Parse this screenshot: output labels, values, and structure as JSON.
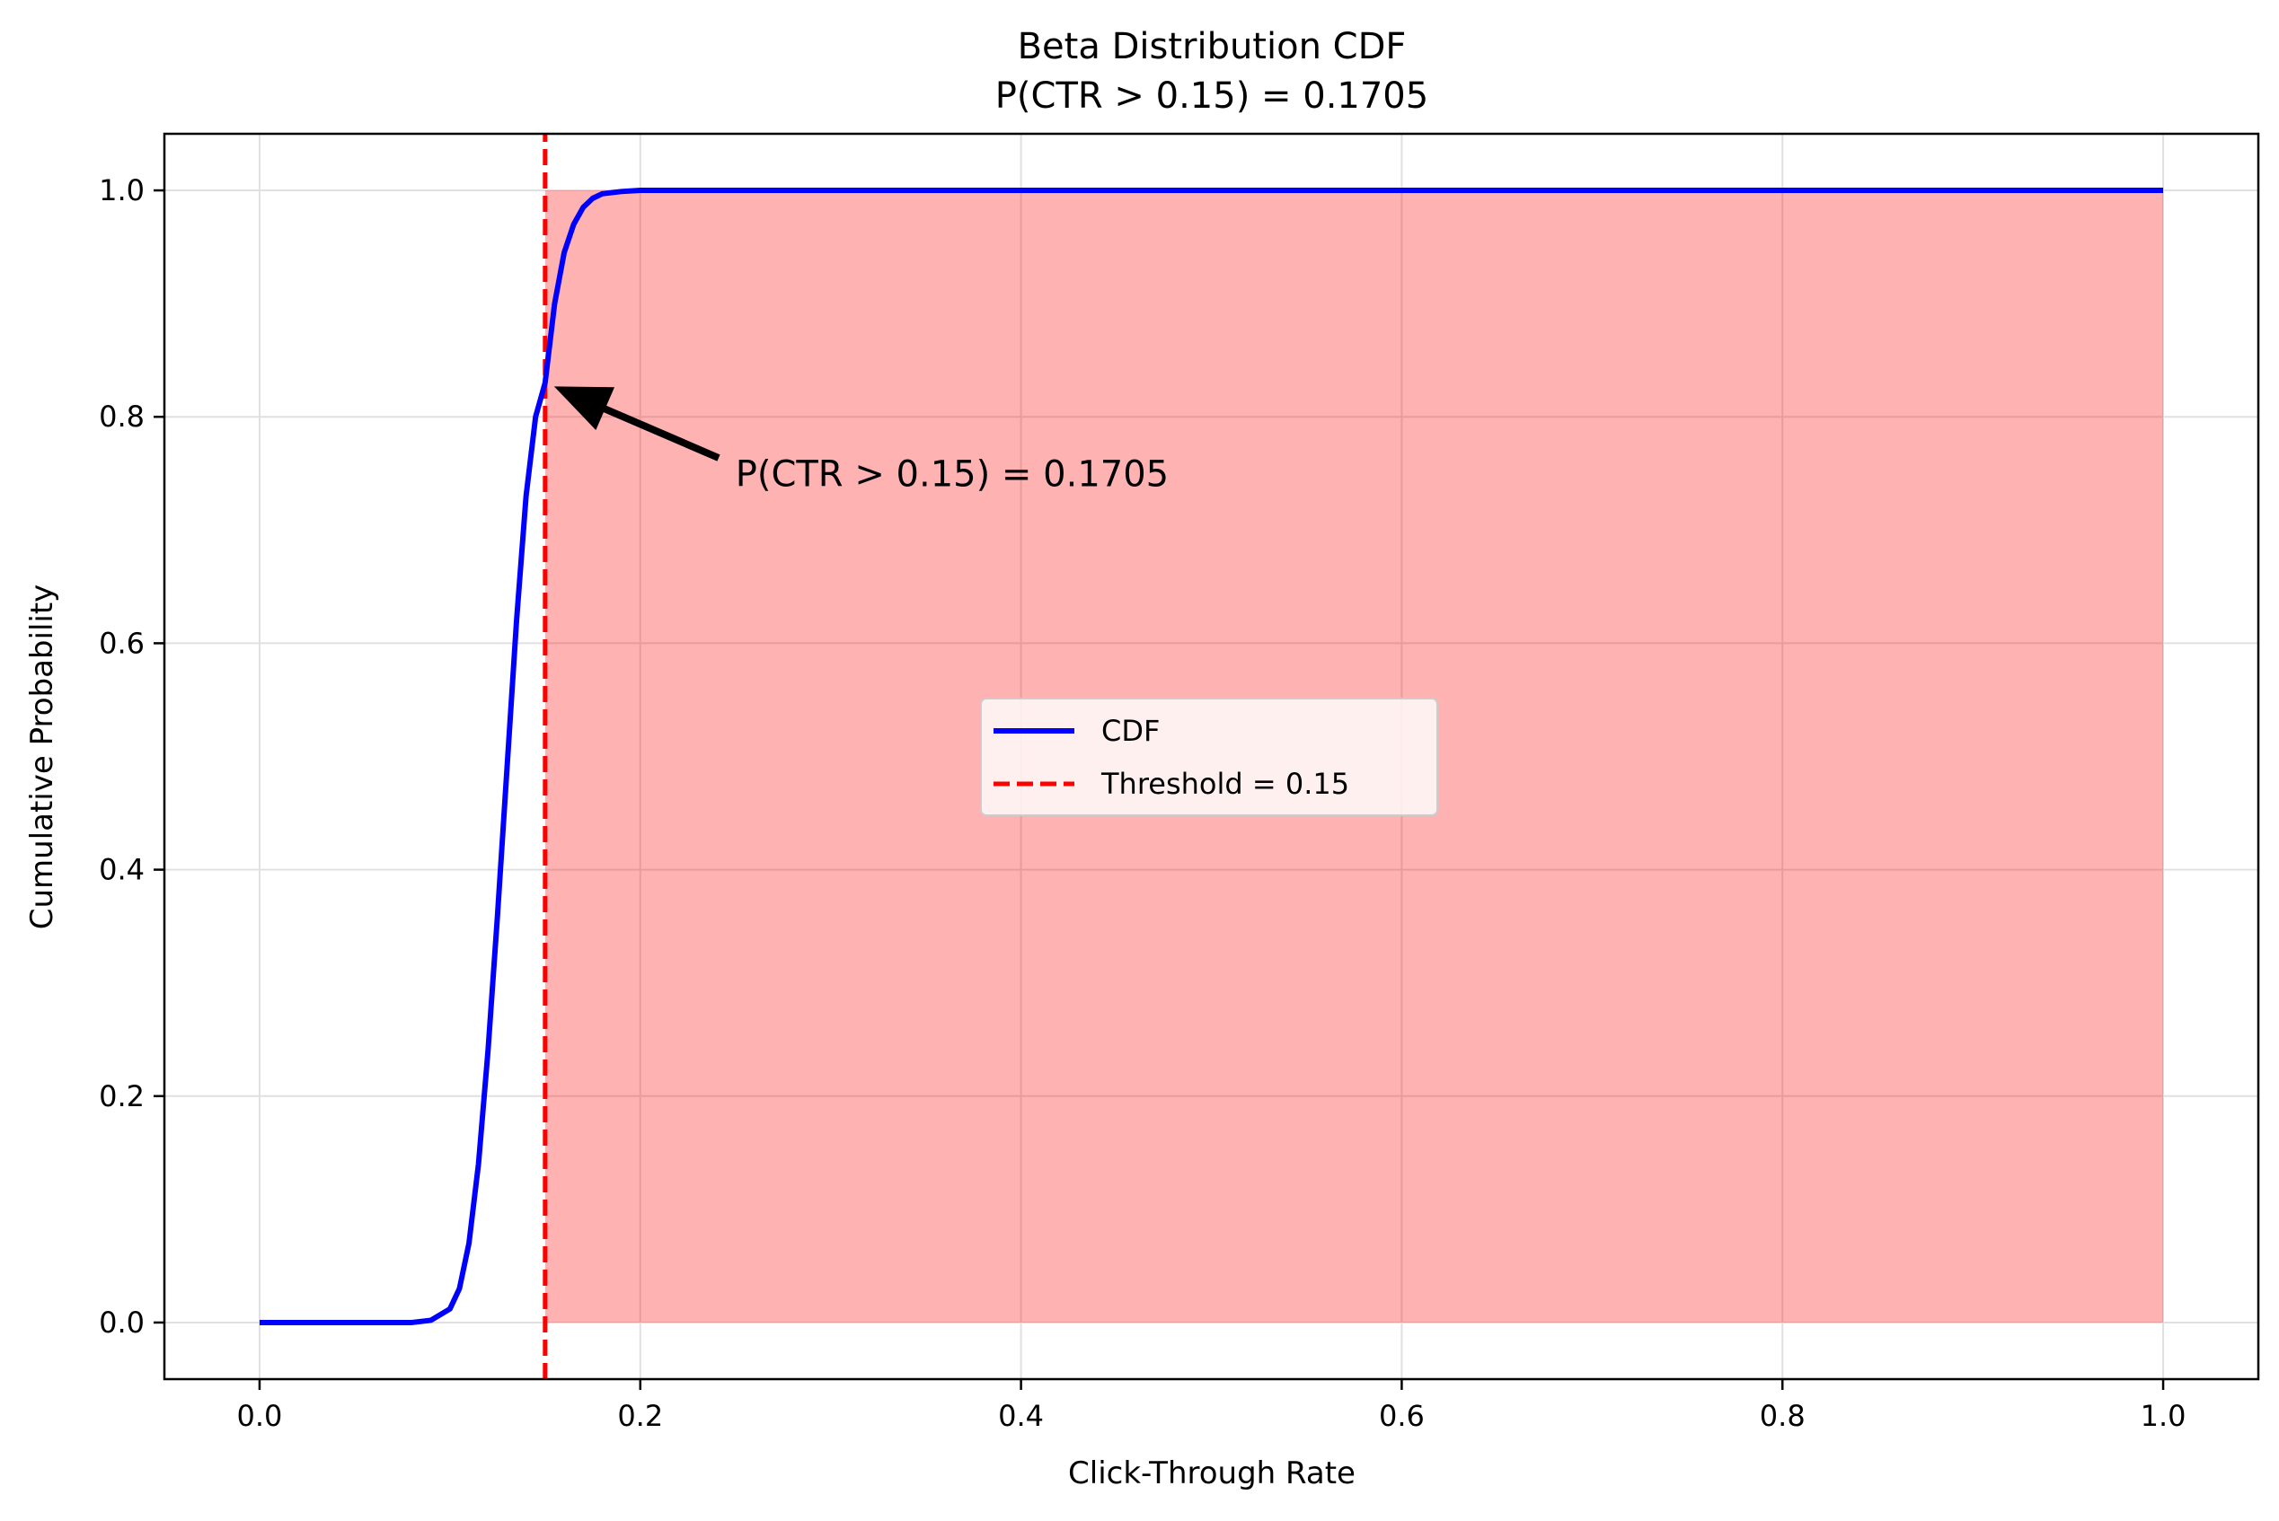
{
  "chart_data": {
    "type": "line",
    "title": "Beta Distribution CDF",
    "subtitle": "P(CTR > 0.15) = 0.1705",
    "xlabel": "Click-Through Rate",
    "ylabel": "Cumulative Probability",
    "xlim": [
      -0.05,
      1.05
    ],
    "ylim": [
      -0.05,
      1.05
    ],
    "x_ticks": [
      0.0,
      0.2,
      0.4,
      0.6,
      0.8,
      1.0
    ],
    "x_tick_labels": [
      "0.0",
      "0.2",
      "0.4",
      "0.6",
      "0.8",
      "1.0"
    ],
    "y_ticks": [
      0.0,
      0.2,
      0.4,
      0.6,
      0.8,
      1.0
    ],
    "y_tick_labels": [
      "0.0",
      "0.2",
      "0.4",
      "0.6",
      "0.8",
      "1.0"
    ],
    "grid": true,
    "legend_position": "center",
    "series": [
      {
        "name": "CDF",
        "color": "#0000ff",
        "style": "solid",
        "x": [
          0.0,
          0.08,
          0.09,
          0.1,
          0.105,
          0.11,
          0.115,
          0.12,
          0.125,
          0.13,
          0.135,
          0.14,
          0.145,
          0.15,
          0.155,
          0.16,
          0.165,
          0.17,
          0.175,
          0.18,
          0.19,
          0.2,
          0.3,
          0.5,
          0.7,
          1.0
        ],
        "y": [
          0.0,
          0.0,
          0.002,
          0.012,
          0.03,
          0.07,
          0.14,
          0.24,
          0.36,
          0.49,
          0.62,
          0.73,
          0.8,
          0.83,
          0.9,
          0.945,
          0.97,
          0.985,
          0.993,
          0.997,
          0.999,
          1.0,
          1.0,
          1.0,
          1.0,
          1.0
        ]
      },
      {
        "name": "Threshold = 0.15",
        "color": "#ff0000",
        "style": "dashed",
        "x": [
          0.15,
          0.15
        ],
        "y": [
          -0.05,
          1.05
        ]
      }
    ],
    "shaded_region": {
      "x_from": 0.15,
      "x_to": 1.0,
      "y_from": 0.0,
      "y_to": 1.0,
      "color": "#ff0000",
      "alpha": 0.3
    },
    "annotation": {
      "text": "P(CTR > 0.15) = 0.1705",
      "arrow_tip": [
        0.15,
        0.83
      ],
      "text_at": [
        0.25,
        0.75
      ]
    }
  }
}
